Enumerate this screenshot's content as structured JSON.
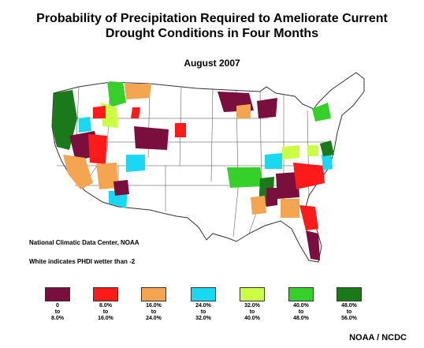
{
  "title_line1": "Probability of Precipitation Required to Ameliorate Current",
  "title_line2": "Drought Conditions in Four Months",
  "subtitle": "August 2007",
  "source": "National Climatic Data Center, NOAA",
  "note": "White indicates PHDI wetter than -2",
  "credit": "NOAA / NCDC",
  "legend": [
    {
      "from": "0",
      "to": "to",
      "end": "8.0%",
      "color": "#7a0e3c"
    },
    {
      "from": "8.0%",
      "to": "to",
      "end": "16.0%",
      "color": "#ff1a1a"
    },
    {
      "from": "16.0%",
      "to": "to",
      "end": "24.0%",
      "color": "#f5a550"
    },
    {
      "from": "24.0%",
      "to": "to",
      "end": "32.0%",
      "color": "#19d8f2"
    },
    {
      "from": "32.0%",
      "to": "to",
      "end": "40.0%",
      "color": "#cbff44"
    },
    {
      "from": "40.0%",
      "to": "to",
      "end": "48.0%",
      "color": "#36d02a"
    },
    {
      "from": "48.0%",
      "to": "to",
      "end": "56.0%",
      "color": "#1a7a1a"
    }
  ],
  "colors": {
    "border": "#333333",
    "background": "#ffffff"
  }
}
